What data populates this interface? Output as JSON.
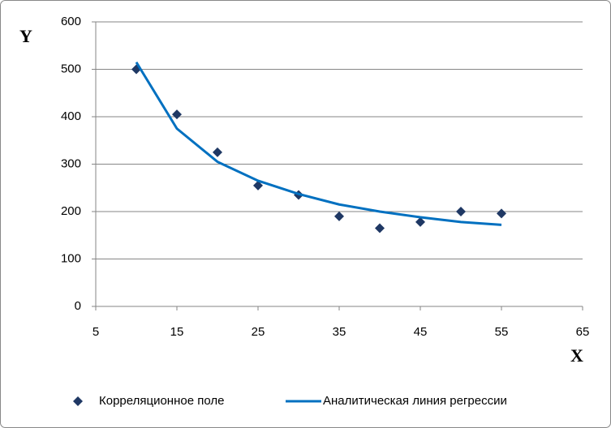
{
  "chart_data": {
    "type": "scatter",
    "x_label": "X",
    "y_label": "Y",
    "xlim": [
      5,
      65
    ],
    "xticks": [
      5,
      15,
      25,
      35,
      45,
      55,
      65
    ],
    "ylim": [
      0,
      600
    ],
    "yticks": [
      0,
      100,
      200,
      300,
      400,
      500,
      600
    ],
    "grid": true,
    "legend": "bottom",
    "series": [
      {
        "name": "Корреляционное поле",
        "color": "#1f3864",
        "type": "scatter",
        "x": [
          10,
          15,
          20,
          25,
          30,
          35,
          40,
          45,
          50,
          55
        ],
        "values": [
          500,
          405,
          325,
          255,
          235,
          190,
          165,
          178,
          200,
          196
        ]
      },
      {
        "name": "Аналитическая линия регрессии",
        "color": "#0070c0",
        "type": "line",
        "x": [
          10,
          15,
          20,
          25,
          30,
          35,
          40,
          45,
          50,
          55
        ],
        "values": [
          515,
          375,
          305,
          265,
          237,
          215,
          200,
          188,
          178,
          172
        ]
      }
    ]
  }
}
